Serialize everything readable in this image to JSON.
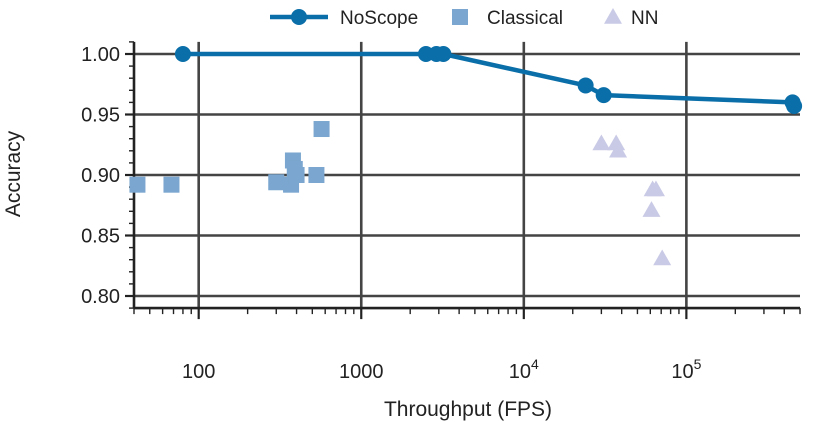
{
  "chart_data": {
    "type": "scatter",
    "xlabel": "Throughput (FPS)",
    "ylabel": "Accuracy",
    "xscale": "log",
    "xlim": [
      40,
      500000
    ],
    "ylim": [
      0.79,
      1.01
    ],
    "grid": true,
    "legend_position": "top",
    "x_ticks": [
      {
        "value": 100,
        "label": "100",
        "sup": ""
      },
      {
        "value": 1000,
        "label": "1000",
        "sup": ""
      },
      {
        "value": 10000,
        "label": "10",
        "sup": "4"
      },
      {
        "value": 100000,
        "label": "10",
        "sup": "5"
      }
    ],
    "y_ticks": [
      {
        "value": 0.8,
        "label": "0.80"
      },
      {
        "value": 0.85,
        "label": "0.85"
      },
      {
        "value": 0.9,
        "label": "0.90"
      },
      {
        "value": 0.95,
        "label": "0.95"
      },
      {
        "value": 1.0,
        "label": "1.00"
      }
    ],
    "series": [
      {
        "name": "NoScope",
        "marker": "circle-line",
        "color": "#0a6ea8",
        "points": [
          [
            80,
            1.0
          ],
          [
            2500,
            1.0
          ],
          [
            2900,
            1.0
          ],
          [
            3200,
            1.0
          ],
          [
            24000,
            0.974
          ],
          [
            31000,
            0.966
          ],
          [
            450000,
            0.96
          ],
          [
            460000,
            0.957
          ]
        ]
      },
      {
        "name": "Classical",
        "marker": "square",
        "color": "#7aa6cf",
        "points": [
          [
            42,
            0.892
          ],
          [
            68,
            0.892
          ],
          [
            300,
            0.894
          ],
          [
            370,
            0.892
          ],
          [
            380,
            0.912
          ],
          [
            390,
            0.905
          ],
          [
            400,
            0.9
          ],
          [
            530,
            0.9
          ],
          [
            570,
            0.938
          ]
        ]
      },
      {
        "name": "NN",
        "marker": "triangle",
        "color": "#c9cae6",
        "points": [
          [
            30000,
            0.926
          ],
          [
            37000,
            0.926
          ],
          [
            38000,
            0.92
          ],
          [
            62000,
            0.888
          ],
          [
            65000,
            0.888
          ],
          [
            61000,
            0.871
          ],
          [
            71000,
            0.831
          ]
        ]
      }
    ]
  }
}
